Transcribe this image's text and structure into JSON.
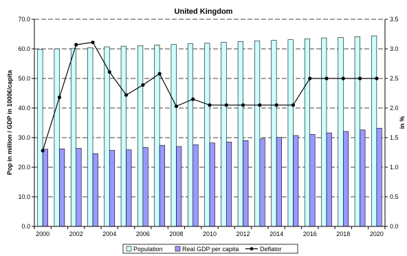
{
  "chart_data": {
    "type": "bar",
    "title": "United Kingdom",
    "xlabel": "",
    "ylabel": "Pop in million / GDP in 1000€/capita",
    "ylabel_right": "in %",
    "ylim": [
      0,
      70
    ],
    "ylim_right": [
      0,
      3.5
    ],
    "yticks": [
      "0.0",
      "10.0",
      "20.0",
      "30.0",
      "40.0",
      "50.0",
      "60.0",
      "70.0"
    ],
    "yticks_right": [
      "0.0",
      "0.5",
      "1.0",
      "1.5",
      "2.0",
      "2.5",
      "3.0",
      "3.5"
    ],
    "grid": "horizontal dashed",
    "legend_position": "bottom",
    "categories": [
      "2000",
      "2001",
      "2002",
      "2003",
      "2004",
      "2005",
      "2006",
      "2007",
      "2008",
      "2009",
      "2010",
      "2011",
      "2012",
      "2013",
      "2014",
      "2015",
      "2016",
      "2017",
      "2018",
      "2019",
      "2020"
    ],
    "x_tick_labels": [
      "2000",
      "2002",
      "2004",
      "2006",
      "2008",
      "2010",
      "2012",
      "2014",
      "2016",
      "2018",
      "2020"
    ],
    "series": [
      {
        "name": "Population",
        "kind": "bar",
        "axis": "left",
        "color": "#ccffff",
        "values": [
          59.8,
          60.0,
          60.2,
          60.4,
          60.7,
          60.9,
          61.1,
          61.3,
          61.5,
          61.7,
          61.9,
          62.2,
          62.5,
          62.7,
          62.9,
          63.1,
          63.4,
          63.7,
          63.9,
          64.1,
          64.4
        ]
      },
      {
        "name": "Real GDP per capita",
        "kind": "bar",
        "axis": "left",
        "color": "#9999ff",
        "values": [
          26.1,
          26.2,
          26.4,
          24.6,
          25.7,
          25.9,
          26.7,
          27.4,
          27.0,
          27.6,
          28.2,
          28.5,
          29.0,
          29.6,
          30.1,
          30.7,
          31.1,
          31.6,
          32.1,
          32.6,
          33.2
        ]
      },
      {
        "name": "Deflator",
        "kind": "line",
        "axis": "right",
        "color": "#000000",
        "values": [
          1.28,
          2.18,
          3.07,
          3.11,
          2.61,
          2.22,
          2.39,
          2.58,
          2.03,
          2.15,
          2.05,
          2.05,
          2.05,
          2.05,
          2.05,
          2.05,
          2.5,
          2.5,
          2.5,
          2.5,
          2.5
        ]
      }
    ]
  }
}
